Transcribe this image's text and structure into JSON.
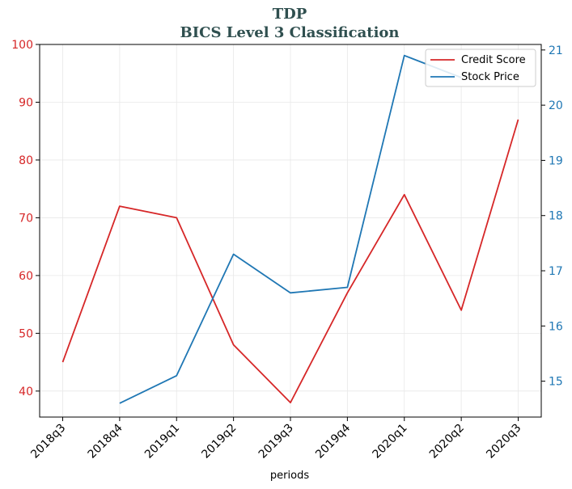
{
  "chart_data": {
    "type": "line",
    "title": "TDP",
    "subtitle": "BICS Level 3 Classification",
    "xlabel": "periods",
    "categories": [
      "2018q3",
      "2018q4",
      "2019q1",
      "2019q2",
      "2019q3",
      "2019q4",
      "2020q1",
      "2020q2",
      "2020q3"
    ],
    "left_axis": {
      "ylim": [
        35.5,
        100
      ],
      "ticks": [
        40,
        50,
        60,
        70,
        80,
        90,
        100
      ],
      "color": "#d62728"
    },
    "right_axis": {
      "ylim": [
        14.35,
        21.1
      ],
      "ticks": [
        15,
        16,
        17,
        18,
        19,
        20,
        21
      ],
      "color": "#1f77b4"
    },
    "series": [
      {
        "name": "Credit Score",
        "axis": "left",
        "color": "#d62728",
        "values": [
          45,
          72,
          70,
          48,
          38,
          57,
          74,
          54,
          87
        ]
      },
      {
        "name": "Stock Price",
        "axis": "right",
        "color": "#1f77b4",
        "values": [
          null,
          14.6,
          15.1,
          17.3,
          16.6,
          16.7,
          20.9,
          20.5,
          null
        ]
      }
    ],
    "grid": true,
    "legend_position": "top-right"
  }
}
